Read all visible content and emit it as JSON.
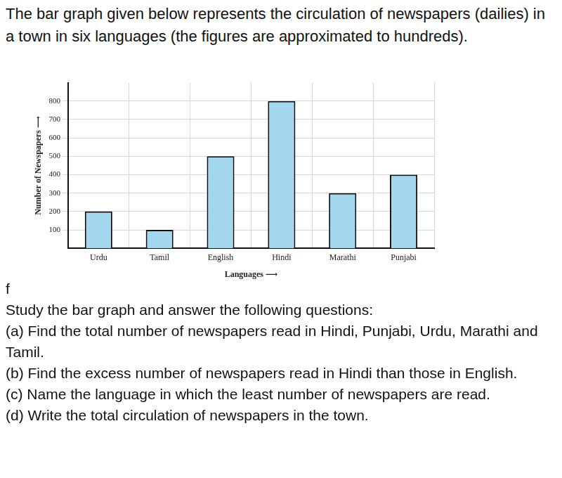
{
  "document": {
    "intro": "The bar graph given below represents the circulation of newspapers (dailies) in a town in six languages (the figures are approximated to hundreds).",
    "marker": "f",
    "prompt": "Study the bar graph and answer the following questions:",
    "questions": [
      "(a) Find the total number of newspapers read in Hindi, Punjabi, Urdu, Marathi and Tamil.",
      "(b) Find the excess number of newspapers read in Hindi than those in English.",
      "(c) Name the language in which the least number of newspapers are read.",
      "(d) Write the total circulation of newspapers in the town."
    ]
  },
  "chart_data": {
    "type": "bar",
    "xlabel": "Languages ⟶",
    "ylabel": "Number of Newspapers ⟶",
    "categories": [
      "Urdu",
      "Tamil",
      "English",
      "Hindi",
      "Marathi",
      "Punjabi"
    ],
    "values": [
      200,
      100,
      500,
      800,
      300,
      400
    ],
    "color": "#a3d7ef",
    "ylim": [
      0,
      900
    ],
    "yticks": [
      100,
      200,
      300,
      400,
      500,
      600,
      700,
      800
    ],
    "grid": true
  }
}
